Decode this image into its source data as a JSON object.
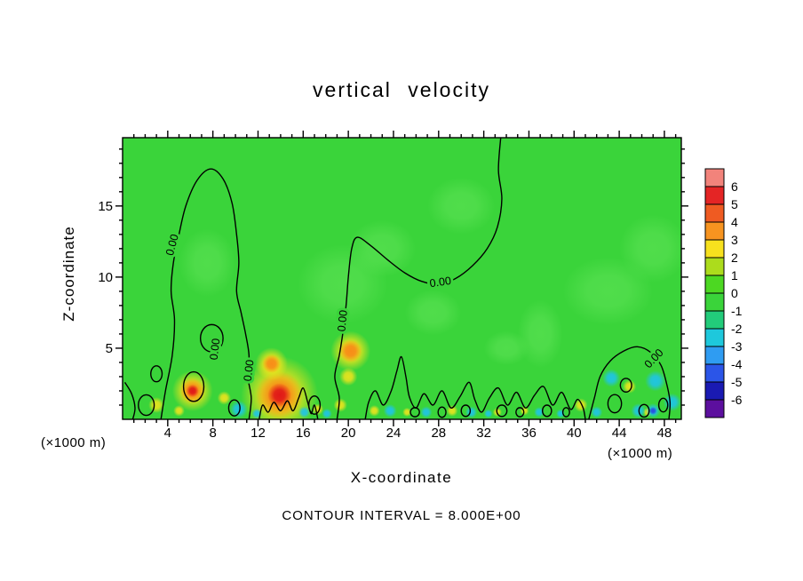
{
  "chart_data": {
    "type": "heatmap",
    "title": "vertical velocity",
    "xlabel": "X-coordinate",
    "ylabel": "Z-coordinate",
    "units_left": "(×1000 m)",
    "units_right": "(×1000 m)",
    "contour_note": "CONTOUR INTERVAL = 8.000E+00",
    "contour_label": "0.00",
    "xlim": [
      0,
      49.5
    ],
    "ylim": [
      0,
      19.8
    ],
    "x_ticks": [
      4,
      8,
      12,
      16,
      20,
      24,
      28,
      32,
      36,
      40,
      44,
      48
    ],
    "x_minor_step": 1,
    "y_ticks": [
      5,
      10,
      15
    ],
    "y_minor_step": 1,
    "grid": false,
    "colorbar": {
      "position": "right",
      "labels": [
        "6",
        "5",
        "4",
        "3",
        "2",
        "1",
        "0",
        "-1",
        "-2",
        "-3",
        "-4",
        "-5",
        "-6"
      ],
      "colors": [
        "#f2837b",
        "#e42525",
        "#ef5b22",
        "#f79420",
        "#f7e11e",
        "#acdc1c",
        "#4cd822",
        "#3ad43a",
        "#22cc7a",
        "#1ec8dc",
        "#2f9cf2",
        "#2b55e8",
        "#1a1ab2",
        "#5c0f9e"
      ]
    },
    "field": {
      "base_color": "#3ad43a",
      "feature_colors": {
        "red": "#e01818",
        "orange": "#f88c18",
        "yellow": "#f4e41c",
        "cyan": "#1fc4e8",
        "blue": "#2850e0",
        "light": "#66e65c"
      },
      "light_patches": [
        [
          19.5,
          9.5,
          4.0,
          3.5
        ],
        [
          23.0,
          12.0,
          3.0,
          2.5
        ],
        [
          27.5,
          7.5,
          2.5,
          2.0
        ],
        [
          34.0,
          5.0,
          2.0,
          1.5
        ],
        [
          43.0,
          9.0,
          4.0,
          3.0
        ],
        [
          47.0,
          12.0,
          3.0,
          3.0
        ],
        [
          7.5,
          11.0,
          2.5,
          3.0
        ],
        [
          30.0,
          15.0,
          3.0,
          2.5
        ],
        [
          37.0,
          6.0,
          2.0,
          3.0
        ]
      ],
      "warm_spots": [
        [
          6.2,
          2.0,
          1.0,
          "red"
        ],
        [
          13.9,
          1.7,
          1.9,
          "red"
        ],
        [
          13.2,
          3.9,
          0.9,
          "orange"
        ],
        [
          20.2,
          4.8,
          1.1,
          "orange"
        ],
        [
          20.0,
          3.0,
          0.8,
          "yellow"
        ],
        [
          3.0,
          1.0,
          0.7,
          "yellow"
        ],
        [
          5.0,
          0.6,
          0.5,
          "yellow"
        ],
        [
          9.0,
          1.5,
          0.6,
          "yellow"
        ],
        [
          17.3,
          0.7,
          0.5,
          "yellow"
        ],
        [
          19.3,
          1.0,
          0.6,
          "yellow"
        ],
        [
          22.3,
          0.6,
          0.5,
          "yellow"
        ],
        [
          25.2,
          0.5,
          0.4,
          "yellow"
        ],
        [
          29.2,
          0.6,
          0.5,
          "yellow"
        ],
        [
          33.2,
          0.5,
          0.4,
          "yellow"
        ],
        [
          35.6,
          0.6,
          0.4,
          "yellow"
        ],
        [
          40.6,
          1.0,
          0.6,
          "yellow"
        ],
        [
          44.9,
          2.3,
          0.6,
          "yellow"
        ],
        [
          46.5,
          0.5,
          0.4,
          "yellow"
        ]
      ],
      "cool_spots": [
        [
          10.3,
          0.7,
          0.6,
          "cyan"
        ],
        [
          11.9,
          0.4,
          0.35,
          "cyan"
        ],
        [
          16.1,
          0.5,
          0.4,
          "cyan"
        ],
        [
          18.1,
          0.4,
          0.35,
          "cyan"
        ],
        [
          23.7,
          0.6,
          0.45,
          "cyan"
        ],
        [
          26.9,
          0.5,
          0.4,
          "cyan"
        ],
        [
          30.9,
          0.5,
          0.4,
          "cyan"
        ],
        [
          32.4,
          0.4,
          0.3,
          "cyan"
        ],
        [
          36.9,
          0.5,
          0.35,
          "cyan"
        ],
        [
          38.8,
          0.4,
          0.3,
          "cyan"
        ],
        [
          42.0,
          0.5,
          0.4,
          "cyan"
        ],
        [
          43.3,
          2.9,
          0.6,
          "cyan"
        ],
        [
          45.7,
          0.6,
          0.5,
          "cyan"
        ],
        [
          47.2,
          2.7,
          0.7,
          "cyan"
        ],
        [
          48.7,
          1.2,
          0.6,
          "cyan"
        ],
        [
          47.0,
          0.6,
          0.5,
          "blue"
        ]
      ]
    },
    "contours": {
      "open": [
        {
          "pts": [
            [
              3.4,
              0
            ],
            [
              3.8,
              2
            ],
            [
              4.4,
              4.5
            ],
            [
              4.6,
              7
            ],
            [
              4.3,
              9
            ],
            [
              4.5,
              11
            ],
            [
              5.0,
              13
            ],
            [
              5.6,
              15
            ],
            [
              6.6,
              16.8
            ],
            [
              7.8,
              17.6
            ],
            [
              8.9,
              16.9
            ],
            [
              9.7,
              15.2
            ],
            [
              10.1,
              13
            ],
            [
              10.3,
              11
            ],
            [
              10.1,
              9
            ],
            [
              10.5,
              7.5
            ],
            [
              10.9,
              6
            ],
            [
              11.2,
              4.5
            ],
            [
              11.1,
              3
            ],
            [
              11.4,
              1.5
            ],
            [
              11.2,
              0
            ]
          ]
        },
        {
          "pts": [
            [
              19.0,
              0
            ],
            [
              19.2,
              1.5
            ],
            [
              18.8,
              3
            ],
            [
              19.2,
              4.5
            ],
            [
              19.5,
              6
            ],
            [
              19.8,
              8
            ],
            [
              20.0,
              10
            ],
            [
              20.3,
              12
            ],
            [
              20.8,
              12.8
            ],
            [
              22.0,
              12.2
            ],
            [
              23.5,
              11.2
            ],
            [
              25.0,
              10.3
            ],
            [
              26.5,
              9.7
            ],
            [
              28.0,
              9.5
            ],
            [
              29.5,
              9.9
            ],
            [
              31.0,
              10.8
            ],
            [
              32.3,
              12.0
            ],
            [
              33.2,
              13.5
            ],
            [
              33.6,
              15.5
            ],
            [
              33.3,
              17.5
            ],
            [
              33.5,
              19.8
            ]
          ]
        },
        {
          "pts": [
            [
              21.5,
              0
            ],
            [
              21.8,
              1.2
            ],
            [
              22.4,
              2.0
            ],
            [
              23.1,
              1.0
            ],
            [
              23.8,
              2.0
            ],
            [
              24.3,
              3.4
            ],
            [
              24.7,
              4.4
            ],
            [
              25.1,
              3.0
            ],
            [
              25.4,
              1.6
            ],
            [
              26.0,
              0.8
            ],
            [
              26.7,
              1.8
            ],
            [
              27.5,
              1.0
            ],
            [
              28.3,
              2.0
            ],
            [
              29.1,
              0.8
            ],
            [
              29.9,
              1.6
            ],
            [
              30.7,
              2.6
            ],
            [
              31.2,
              1.4
            ],
            [
              31.8,
              0.5
            ],
            [
              32.5,
              1.5
            ],
            [
              33.3,
              2.2
            ],
            [
              34.1,
              1.0
            ],
            [
              34.9,
              1.9
            ],
            [
              35.7,
              0.8
            ],
            [
              36.5,
              1.7
            ],
            [
              37.3,
              2.3
            ],
            [
              38.1,
              1.0
            ],
            [
              38.9,
              1.9
            ],
            [
              39.7,
              0.7
            ],
            [
              40.3,
              1.4
            ],
            [
              40.8,
              0.8
            ],
            [
              41.0,
              0
            ]
          ]
        },
        {
          "pts": [
            [
              41.3,
              0
            ],
            [
              41.8,
              1.5
            ],
            [
              42.3,
              3.0
            ],
            [
              43.2,
              4.1
            ],
            [
              44.4,
              4.8
            ],
            [
              45.6,
              5.1
            ],
            [
              46.8,
              4.7
            ],
            [
              47.7,
              3.8
            ],
            [
              48.2,
              2.5
            ],
            [
              48.5,
              1.2
            ],
            [
              48.4,
              0
            ]
          ]
        },
        {
          "pts": [
            [
              12.1,
              0
            ],
            [
              12.4,
              1.0
            ],
            [
              12.9,
              0.5
            ],
            [
              13.4,
              1.2
            ],
            [
              14.0,
              0.6
            ],
            [
              14.6,
              1.3
            ],
            [
              15.1,
              0.6
            ],
            [
              15.6,
              1.5
            ],
            [
              16.0,
              2.2
            ],
            [
              16.4,
              1.2
            ],
            [
              16.7,
              0.4
            ],
            [
              17.0,
              1.0
            ],
            [
              17.3,
              0
            ]
          ]
        },
        {
          "pts": [
            [
              0.2,
              2.6
            ],
            [
              0.8,
              1.8
            ],
            [
              1.1,
              0.8
            ],
            [
              0.9,
              0
            ]
          ]
        }
      ],
      "loops": [
        [
          7.9,
          5.7,
          1.0,
          1.2
        ],
        [
          6.3,
          2.3,
          0.9,
          1.3
        ],
        [
          2.1,
          1.0,
          0.7,
          0.9
        ],
        [
          3.0,
          3.2,
          0.5,
          0.7
        ],
        [
          9.9,
          0.8,
          0.5,
          0.7
        ],
        [
          17.0,
          1.0,
          0.5,
          0.8
        ],
        [
          25.9,
          0.5,
          0.4,
          0.4
        ],
        [
          28.3,
          0.5,
          0.35,
          0.45
        ],
        [
          30.4,
          0.6,
          0.4,
          0.5
        ],
        [
          33.6,
          0.6,
          0.45,
          0.5
        ],
        [
          35.2,
          0.5,
          0.35,
          0.4
        ],
        [
          37.6,
          0.6,
          0.4,
          0.5
        ],
        [
          39.3,
          0.5,
          0.3,
          0.4
        ],
        [
          43.6,
          1.1,
          0.6,
          0.8
        ],
        [
          44.6,
          2.4,
          0.5,
          0.6
        ],
        [
          46.2,
          0.6,
          0.45,
          0.55
        ],
        [
          47.9,
          1.0,
          0.4,
          0.6
        ]
      ],
      "labels": [
        [
          4.7,
          12.2,
          -75
        ],
        [
          11.5,
          3.4,
          -83
        ],
        [
          8.5,
          4.9,
          -83
        ],
        [
          19.8,
          6.9,
          -84
        ],
        [
          28.2,
          9.4,
          -8
        ],
        [
          47.3,
          4.1,
          -46
        ]
      ]
    }
  }
}
